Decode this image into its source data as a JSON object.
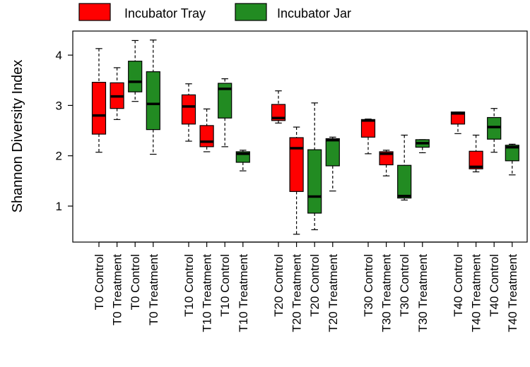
{
  "chart_data": {
    "type": "box",
    "ylabel": "Shannon Diversity Index",
    "ylim": [
      0.3,
      4.7
    ],
    "yticks": [
      1,
      2,
      3,
      4
    ],
    "legend": [
      {
        "name": "Incubator Tray",
        "color": "#ff0000"
      },
      {
        "name": "Incubator Jar",
        "color": "#228b22"
      }
    ],
    "legend_position": "top",
    "categories": [
      "T0 Control",
      "T0 Treatment",
      "T0 Control",
      "T0 Treatment",
      "T10 Control",
      "T10 Treatment",
      "T10 Control",
      "T10 Treatment",
      "T20 Control",
      "T20 Treatment",
      "T20 Control",
      "T20 Treatment",
      "T30 Control",
      "T30 Treatment",
      "T30 Control",
      "T30 Treatment",
      "T40 Control",
      "T40 Treatment",
      "T40 Control",
      "T40 Treatment"
    ],
    "boxes": [
      {
        "series": "Incubator Tray",
        "min": 2.07,
        "q1": 2.43,
        "median": 2.8,
        "q3": 3.46,
        "max": 4.13
      },
      {
        "series": "Incubator Tray",
        "min": 2.72,
        "q1": 2.94,
        "median": 3.18,
        "q3": 3.45,
        "max": 3.75
      },
      {
        "series": "Incubator Jar",
        "min": 3.08,
        "q1": 3.27,
        "median": 3.47,
        "q3": 3.88,
        "max": 4.29
      },
      {
        "series": "Incubator Jar",
        "min": 2.03,
        "q1": 2.52,
        "median": 3.03,
        "q3": 3.67,
        "max": 4.3
      },
      {
        "series": "Incubator Tray",
        "min": 2.29,
        "q1": 2.63,
        "median": 2.98,
        "q3": 3.21,
        "max": 3.43
      },
      {
        "series": "Incubator Tray",
        "min": 2.08,
        "q1": 2.18,
        "median": 2.28,
        "q3": 2.6,
        "max": 2.93
      },
      {
        "series": "Incubator Jar",
        "min": 2.18,
        "q1": 2.75,
        "median": 3.33,
        "q3": 3.44,
        "max": 3.53
      },
      {
        "series": "Incubator Jar",
        "min": 1.7,
        "q1": 1.87,
        "median": 2.04,
        "q3": 2.08,
        "max": 2.11
      },
      {
        "series": "Incubator Tray",
        "min": 2.65,
        "q1": 2.7,
        "median": 2.75,
        "q3": 3.02,
        "max": 3.29
      },
      {
        "series": "Incubator Tray",
        "min": 0.44,
        "q1": 1.29,
        "median": 2.15,
        "q3": 2.36,
        "max": 2.57
      },
      {
        "series": "Incubator Jar",
        "min": 0.53,
        "q1": 0.86,
        "median": 1.19,
        "q3": 2.12,
        "max": 3.05
      },
      {
        "series": "Incubator Jar",
        "min": 1.3,
        "q1": 1.8,
        "median": 2.31,
        "q3": 2.34,
        "max": 2.37
      },
      {
        "series": "Incubator Tray",
        "min": 2.04,
        "q1": 2.37,
        "median": 2.7,
        "q3": 2.72,
        "max": 2.73
      },
      {
        "series": "Incubator Tray",
        "min": 1.6,
        "q1": 1.82,
        "median": 2.04,
        "q3": 2.08,
        "max": 2.11
      },
      {
        "series": "Incubator Jar",
        "min": 1.12,
        "q1": 1.16,
        "median": 1.2,
        "q3": 1.81,
        "max": 2.41
      },
      {
        "series": "Incubator Jar",
        "min": 2.06,
        "q1": 2.17,
        "median": 2.25,
        "q3": 2.32,
        "max": 2.32
      },
      {
        "series": "Incubator Tray",
        "min": 2.44,
        "q1": 2.63,
        "median": 2.84,
        "q3": 2.87,
        "max": 2.87
      },
      {
        "series": "Incubator Tray",
        "min": 1.68,
        "q1": 1.74,
        "median": 1.78,
        "q3": 2.09,
        "max": 2.41
      },
      {
        "series": "Incubator Jar",
        "min": 2.07,
        "q1": 2.33,
        "median": 2.57,
        "q3": 2.76,
        "max": 2.94
      },
      {
        "series": "Incubator Jar",
        "min": 1.62,
        "q1": 1.9,
        "median": 2.17,
        "q3": 2.21,
        "max": 2.23
      }
    ],
    "grid": false
  }
}
